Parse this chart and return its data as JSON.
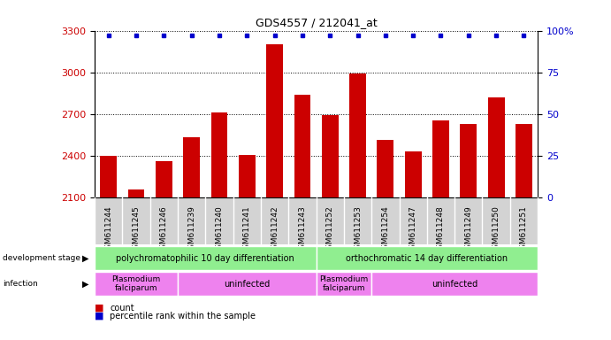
{
  "title": "GDS4557 / 212041_at",
  "samples": [
    "GSM611244",
    "GSM611245",
    "GSM611246",
    "GSM611239",
    "GSM611240",
    "GSM611241",
    "GSM611242",
    "GSM611243",
    "GSM611252",
    "GSM611253",
    "GSM611254",
    "GSM611247",
    "GSM611248",
    "GSM611249",
    "GSM611250",
    "GSM611251"
  ],
  "counts": [
    2395,
    2155,
    2360,
    2530,
    2710,
    2405,
    3200,
    2840,
    2690,
    2990,
    2510,
    2430,
    2650,
    2630,
    2820,
    2630
  ],
  "ymin": 2100,
  "ymax": 3300,
  "yticks": [
    2100,
    2400,
    2700,
    3000,
    3300
  ],
  "y2ticks": [
    0,
    25,
    50,
    75,
    100
  ],
  "y2ticklabels": [
    "0",
    "25",
    "50",
    "75",
    "100%"
  ],
  "bar_color": "#cc0000",
  "dot_color": "#0000cc",
  "bar_width": 0.6,
  "group1_label": "polychromatophilic 10 day differentiation",
  "group2_label": "orthochromatic 14 day differentiation",
  "n_group1": 8,
  "n_group2": 8,
  "n_infected1": 3,
  "n_uninfected1": 5,
  "n_infected2": 2,
  "n_uninfected2": 6,
  "stage_color": "#90ee90",
  "infection_color": "#ee82ee",
  "bg_color": "#ffffff",
  "plot_bg_color": "#ffffff",
  "xtick_bg_color": "#d3d3d3",
  "ylabel_color_left": "#cc0000",
  "ylabel_color_right": "#0000cc",
  "legend_count_color": "#cc0000",
  "legend_pct_color": "#0000cc",
  "grid_color": "#000000",
  "spine_color": "#000000"
}
